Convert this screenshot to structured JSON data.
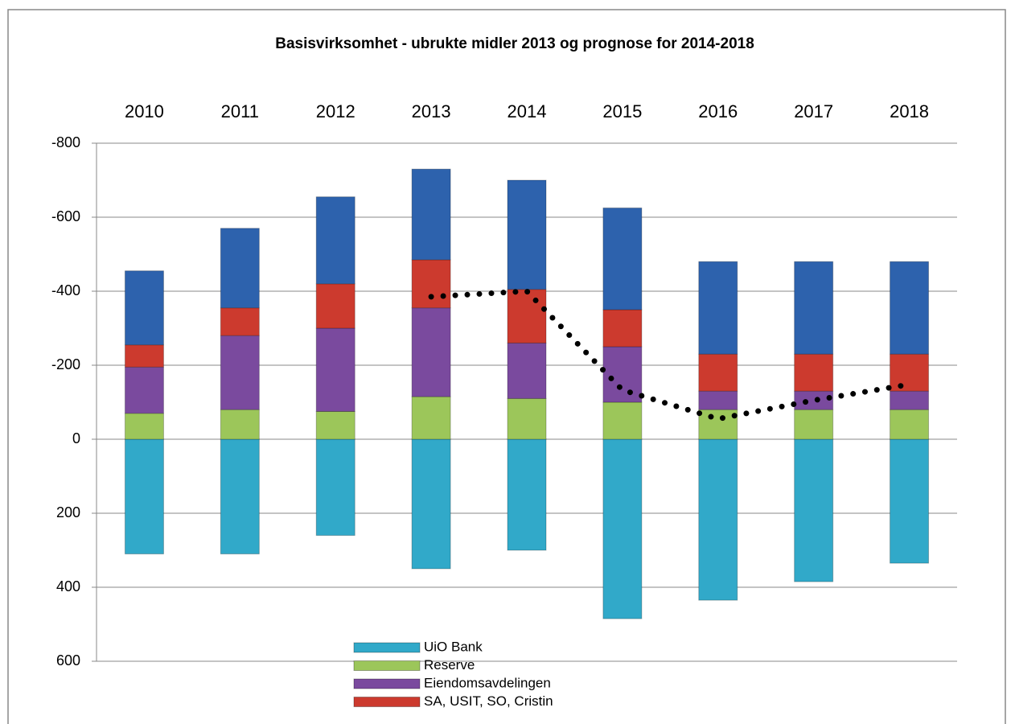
{
  "chart_data": {
    "type": "bar",
    "title": "Basisvirksomhet - ubrukte midler 2013 og prognose for 2014-2018",
    "categories": [
      "2010",
      "2011",
      "2012",
      "2013",
      "2014",
      "2015",
      "2016",
      "2017",
      "2018"
    ],
    "stacked": true,
    "series": [
      {
        "name": "UiO Bank",
        "color": "#31a9c9",
        "values": [
          310,
          310,
          260,
          350,
          300,
          485,
          435,
          385,
          335
        ]
      },
      {
        "name": "Reserve",
        "color": "#9cc65a",
        "values": [
          -70,
          -80,
          -75,
          -115,
          -110,
          -100,
          -80,
          -80,
          -80
        ]
      },
      {
        "name": "Eiendomsavdelingen",
        "color": "#7a4a9e",
        "values": [
          -125,
          -200,
          -225,
          -240,
          -150,
          -150,
          -50,
          -50,
          -50
        ]
      },
      {
        "name": "SA, USIT, SO, Cristin",
        "color": "#cc3a2e",
        "values": [
          -60,
          -75,
          -120,
          -130,
          -145,
          -100,
          -100,
          -100,
          -100
        ]
      },
      {
        "color": "#2d62ad",
        "values": [
          -200,
          -215,
          -235,
          -245,
          -295,
          -275,
          -250,
          -250,
          -250
        ]
      },
      {
        "type": "line",
        "color": "#000000",
        "values": [
          null,
          null,
          null,
          -385,
          -400,
          -133,
          -55,
          -105,
          -148
        ]
      }
    ],
    "ylim": [
      600,
      -800
    ],
    "yticks": [
      -800,
      -600,
      -400,
      -200,
      0,
      200,
      400,
      600
    ],
    "grid": true
  }
}
